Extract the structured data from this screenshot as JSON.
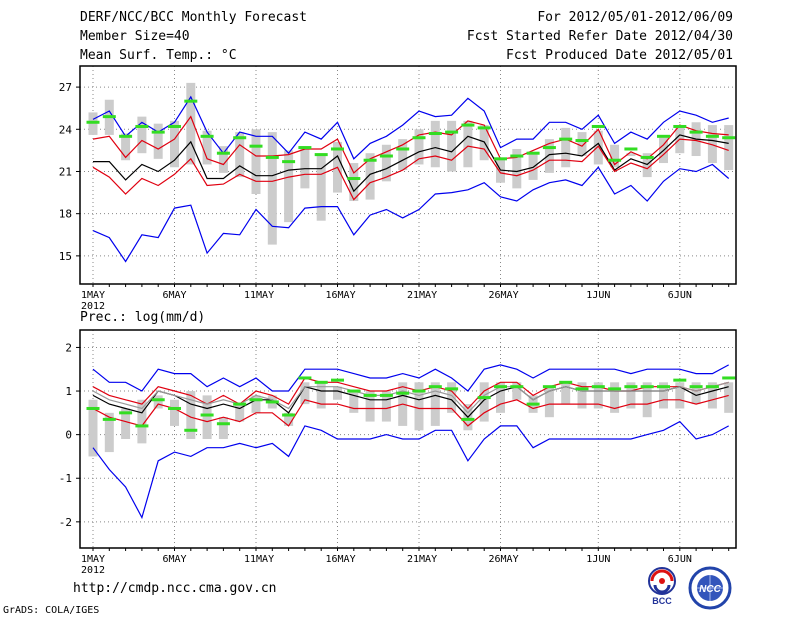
{
  "header": {
    "title": "DERF/NCC/BCC Monthly Forecast",
    "member_size": "Member Size=40",
    "variable": "Mean Surf. Temp.: °C",
    "period": "For 2012/05/01-2012/06/09",
    "started": "Fcst Started Refer Date 2012/04/30",
    "produced": "Fcst Produced Date 2012/05/01"
  },
  "footer": {
    "url": "http://cmdp.ncc.cma.gov.cn",
    "credit": "GrADS: COLA/IGES",
    "logo_left": "BCC",
    "logo_right": "NCC"
  },
  "colors": {
    "mean": "#000000",
    "spread": "#e00010",
    "extreme": "#0000ee",
    "obs": "#33dd22",
    "box": "#cccccc"
  },
  "chart_data": [
    {
      "type": "line",
      "title": "Mean Surf. Temp.: °C",
      "x": [
        "1MAY",
        "2",
        "3",
        "4",
        "5",
        "6",
        "7",
        "8",
        "9",
        "10",
        "11",
        "12",
        "13",
        "14",
        "15",
        "16",
        "17",
        "18",
        "19",
        "20",
        "21",
        "22",
        "23",
        "24",
        "25",
        "26",
        "27",
        "28",
        "29",
        "30",
        "31",
        "1JUN",
        "2",
        "3",
        "4",
        "5",
        "6",
        "7",
        "8",
        "9"
      ],
      "x_tick_labels": [
        "1MAY",
        "6MAY",
        "11MAY",
        "16MAY",
        "21MAY",
        "26MAY",
        "1JUN",
        "6JUN"
      ],
      "x_tick_index": [
        0,
        5,
        10,
        15,
        20,
        25,
        31,
        36
      ],
      "year_label": "2012",
      "ylim": [
        13,
        28.5
      ],
      "yticks": [
        15,
        18,
        21,
        24,
        27
      ],
      "series": [
        {
          "name": "max",
          "color": "blue",
          "values": [
            24.7,
            25.3,
            23.5,
            24.5,
            23.8,
            24.5,
            26.3,
            23.8,
            22.3,
            23.8,
            23.5,
            23.5,
            22.3,
            23.8,
            23.3,
            24.5,
            21.9,
            23.0,
            23.5,
            24.3,
            25.3,
            24.9,
            25.0,
            26.2,
            25.3,
            22.7,
            23.3,
            23.3,
            24.5,
            24.5,
            24.0,
            25.0,
            23.0,
            23.8,
            23.3,
            24.5,
            25.3,
            25.0,
            24.5,
            24.8
          ]
        },
        {
          "name": "upper",
          "color": "red",
          "values": [
            23.3,
            23.5,
            22.0,
            23.2,
            22.6,
            23.3,
            24.9,
            21.9,
            21.5,
            22.9,
            22.1,
            22.1,
            22.2,
            22.6,
            22.6,
            23.3,
            20.9,
            21.9,
            22.4,
            22.9,
            23.6,
            23.8,
            23.6,
            24.6,
            24.3,
            21.9,
            22.0,
            22.5,
            23.0,
            23.3,
            22.8,
            24.0,
            21.5,
            22.4,
            21.9,
            22.9,
            24.3,
            23.9,
            23.7,
            23.6
          ]
        },
        {
          "name": "mean",
          "color": "black",
          "values": [
            21.7,
            21.7,
            20.4,
            21.5,
            21.0,
            21.8,
            23.1,
            20.5,
            20.5,
            21.4,
            20.7,
            20.7,
            21.1,
            21.2,
            21.2,
            22.1,
            19.6,
            20.8,
            21.2,
            21.8,
            22.4,
            22.7,
            22.4,
            23.5,
            23.1,
            21.1,
            21.0,
            21.3,
            22.2,
            22.3,
            22.1,
            23.0,
            21.1,
            21.9,
            21.5,
            22.5,
            23.6,
            23.3,
            23.2,
            23.0
          ]
        },
        {
          "name": "lower",
          "color": "red",
          "values": [
            21.3,
            20.6,
            19.4,
            20.5,
            20.0,
            20.8,
            21.9,
            20.0,
            20.1,
            20.8,
            20.3,
            20.3,
            20.6,
            20.8,
            20.8,
            21.3,
            19.0,
            20.2,
            20.6,
            21.1,
            21.9,
            22.1,
            21.8,
            22.8,
            22.6,
            20.9,
            20.7,
            21.1,
            21.8,
            21.8,
            21.7,
            22.8,
            21.0,
            21.6,
            21.2,
            22.2,
            23.3,
            23.2,
            22.9,
            22.5
          ]
        },
        {
          "name": "min",
          "color": "blue",
          "values": [
            16.8,
            16.3,
            14.6,
            16.5,
            16.3,
            18.4,
            18.6,
            15.2,
            16.6,
            16.5,
            18.3,
            17.1,
            17.0,
            18.4,
            18.5,
            18.5,
            16.5,
            17.9,
            18.3,
            17.7,
            18.3,
            19.4,
            19.5,
            19.7,
            20.2,
            19.2,
            18.9,
            19.7,
            20.2,
            20.4,
            20.0,
            21.3,
            19.4,
            20.0,
            18.9,
            20.3,
            21.2,
            21.0,
            21.5,
            20.5
          ]
        }
      ],
      "box_low": [
        23.6,
        23.6,
        21.8,
        22.3,
        21.9,
        21.3,
        21.5,
        21.5,
        20.9,
        20.6,
        19.4,
        15.8,
        17.4,
        19.8,
        17.5,
        19.5,
        18.9,
        19.0,
        20.3,
        21.1,
        21.5,
        21.3,
        21.0,
        21.3,
        21.8,
        20.2,
        19.8,
        20.4,
        20.9,
        21.3,
        22.1,
        21.5,
        21.3,
        22.1,
        20.6,
        21.6,
        22.3,
        22.1,
        21.6,
        21.1
      ],
      "box_high": [
        25.2,
        26.1,
        23.7,
        24.9,
        24.4,
        24.6,
        27.3,
        23.9,
        22.8,
        23.8,
        24.0,
        23.8,
        22.5,
        22.8,
        22.3,
        23.1,
        21.6,
        22.3,
        22.9,
        23.3,
        24.0,
        24.6,
        24.6,
        24.6,
        24.3,
        21.9,
        22.6,
        22.2,
        23.3,
        24.1,
        23.8,
        23.9,
        22.9,
        22.3,
        22.3,
        23.4,
        24.3,
        24.5,
        24.3,
        24.3
      ],
      "observed": [
        24.5,
        24.9,
        23.5,
        24.2,
        23.8,
        24.2,
        26.0,
        23.5,
        22.3,
        23.4,
        22.8,
        22.0,
        21.7,
        22.7,
        22.2,
        22.6,
        20.5,
        21.8,
        22.1,
        22.6,
        23.4,
        23.7,
        23.8,
        24.3,
        24.1,
        21.9,
        22.1,
        22.3,
        22.7,
        23.3,
        23.2,
        24.2,
        21.8,
        22.6,
        22.0,
        23.5,
        24.2,
        23.8,
        23.5,
        23.4
      ]
    },
    {
      "type": "line",
      "title": "Prec.: log(mm/d)",
      "x": [
        "1MAY",
        "2",
        "3",
        "4",
        "5",
        "6",
        "7",
        "8",
        "9",
        "10",
        "11",
        "12",
        "13",
        "14",
        "15",
        "16",
        "17",
        "18",
        "19",
        "20",
        "21",
        "22",
        "23",
        "24",
        "25",
        "26",
        "27",
        "28",
        "29",
        "30",
        "31",
        "1JUN",
        "2",
        "3",
        "4",
        "5",
        "6",
        "7",
        "8",
        "9"
      ],
      "x_tick_labels": [
        "1MAY",
        "6MAY",
        "11MAY",
        "16MAY",
        "21MAY",
        "26MAY",
        "1JUN",
        "6JUN"
      ],
      "x_tick_index": [
        0,
        5,
        10,
        15,
        20,
        25,
        31,
        36
      ],
      "year_label": "2012",
      "ylim": [
        -2.6,
        2.4
      ],
      "yticks": [
        -2,
        -1,
        0,
        1,
        2
      ],
      "series": [
        {
          "name": "max",
          "color": "blue",
          "values": [
            1.5,
            1.2,
            1.2,
            1.0,
            1.5,
            1.4,
            1.4,
            1.1,
            1.3,
            1.1,
            1.3,
            1.0,
            1.0,
            1.5,
            1.5,
            1.5,
            1.4,
            1.3,
            1.3,
            1.4,
            1.3,
            1.5,
            1.3,
            1.0,
            1.5,
            1.6,
            1.5,
            1.3,
            1.5,
            1.5,
            1.5,
            1.5,
            1.5,
            1.4,
            1.5,
            1.5,
            1.5,
            1.4,
            1.4,
            1.6
          ]
        },
        {
          "name": "upper",
          "color": "red",
          "values": [
            1.1,
            0.9,
            0.8,
            0.7,
            1.1,
            1.0,
            0.9,
            0.7,
            0.9,
            0.7,
            1.0,
            0.9,
            0.7,
            1.3,
            1.2,
            1.2,
            1.1,
            1.0,
            1.0,
            1.1,
            1.0,
            1.1,
            1.0,
            0.6,
            1.0,
            1.2,
            1.2,
            0.9,
            1.1,
            1.2,
            1.1,
            1.1,
            1.0,
            1.0,
            1.1,
            1.1,
            1.1,
            1.0,
            1.1,
            1.2
          ]
        },
        {
          "name": "mean",
          "color": "black",
          "values": [
            0.9,
            0.7,
            0.6,
            0.5,
            1.0,
            0.9,
            0.7,
            0.6,
            0.7,
            0.6,
            0.8,
            0.8,
            0.5,
            1.1,
            1.0,
            1.0,
            0.9,
            0.8,
            0.8,
            0.9,
            0.8,
            0.9,
            0.8,
            0.4,
            0.8,
            1.0,
            1.1,
            0.8,
            1.0,
            1.1,
            1.0,
            1.0,
            1.0,
            1.0,
            1.0,
            1.0,
            1.1,
            0.9,
            1.0,
            1.1
          ]
        },
        {
          "name": "lower",
          "color": "red",
          "values": [
            0.6,
            0.4,
            0.3,
            0.2,
            0.7,
            0.6,
            0.4,
            0.3,
            0.4,
            0.3,
            0.5,
            0.5,
            0.2,
            0.8,
            0.7,
            0.7,
            0.6,
            0.6,
            0.6,
            0.7,
            0.6,
            0.6,
            0.6,
            0.2,
            0.5,
            0.7,
            0.8,
            0.6,
            0.7,
            0.7,
            0.7,
            0.7,
            0.6,
            0.7,
            0.7,
            0.8,
            0.8,
            0.7,
            0.8,
            0.9
          ]
        },
        {
          "name": "min",
          "color": "blue",
          "values": [
            -0.3,
            -0.8,
            -1.2,
            -1.9,
            -0.6,
            -0.4,
            -0.5,
            -0.3,
            -0.3,
            -0.2,
            -0.3,
            -0.2,
            -0.5,
            0.2,
            0.1,
            -0.1,
            -0.1,
            -0.1,
            0.0,
            -0.1,
            -0.1,
            0.1,
            0.1,
            -0.6,
            -0.1,
            0.2,
            0.2,
            -0.3,
            -0.1,
            -0.1,
            -0.1,
            -0.1,
            -0.1,
            -0.1,
            0.0,
            0.1,
            0.3,
            -0.1,
            0.0,
            0.2
          ]
        },
        {
          "name": "observed_line",
          "color": "gray",
          "values": [
            1.0,
            0.8,
            0.7,
            0.6,
            1.0,
            0.9,
            0.8,
            0.7,
            0.8,
            0.7,
            0.9,
            0.8,
            0.6,
            1.1,
            1.1,
            1.1,
            1.0,
            0.9,
            0.9,
            1.0,
            0.9,
            1.0,
            0.9,
            0.5,
            0.9,
            1.1,
            1.1,
            0.8,
            1.0,
            1.1,
            1.0,
            1.0,
            1.0,
            1.0,
            1.0,
            1.0,
            1.1,
            1.0,
            1.1,
            1.2
          ]
        }
      ],
      "box_low": [
        -0.5,
        -0.4,
        -0.1,
        -0.2,
        0.6,
        0.2,
        -0.1,
        -0.1,
        -0.1,
        0.3,
        0.5,
        0.6,
        0.2,
        0.7,
        0.6,
        0.8,
        0.5,
        0.3,
        0.3,
        0.2,
        0.1,
        0.2,
        0.5,
        0.1,
        0.3,
        0.5,
        0.8,
        0.5,
        0.4,
        0.7,
        0.6,
        0.6,
        0.5,
        0.6,
        0.4,
        0.6,
        0.6,
        0.7,
        0.6,
        0.5
      ],
      "box_high": [
        0.8,
        0.5,
        0.6,
        0.8,
        0.9,
        0.8,
        1.0,
        0.9,
        0.4,
        0.7,
        0.9,
        0.9,
        0.5,
        1.2,
        1.2,
        1.1,
        1.0,
        1.0,
        1.0,
        1.2,
        1.2,
        1.2,
        1.2,
        0.7,
        1.2,
        1.2,
        1.2,
        0.9,
        1.1,
        1.2,
        1.2,
        1.2,
        1.2,
        1.2,
        1.2,
        1.2,
        1.2,
        1.2,
        1.2,
        1.2
      ],
      "observed": [
        0.6,
        0.35,
        0.5,
        0.2,
        0.8,
        0.6,
        0.1,
        0.45,
        0.25,
        0.7,
        0.8,
        0.75,
        0.45,
        1.3,
        1.2,
        1.25,
        1.0,
        0.9,
        0.9,
        0.95,
        1.0,
        1.1,
        1.05,
        0.35,
        0.85,
        1.1,
        1.1,
        0.7,
        1.1,
        1.2,
        1.05,
        1.1,
        1.05,
        1.1,
        1.1,
        1.1,
        1.25,
        1.1,
        1.1,
        1.3
      ]
    }
  ]
}
